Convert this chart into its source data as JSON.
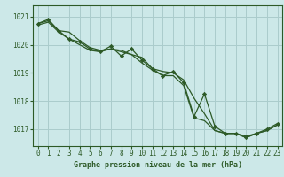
{
  "title": "Graphe pression niveau de la mer (hPa)",
  "bg_color": "#cce8e8",
  "grid_color": "#aacccc",
  "line_color": "#2d5a27",
  "ylim": [
    1016.4,
    1021.4
  ],
  "xlim": [
    -0.5,
    23.5
  ],
  "yticks": [
    1017,
    1018,
    1019,
    1020,
    1021
  ],
  "xticks": [
    0,
    1,
    2,
    3,
    4,
    5,
    6,
    7,
    8,
    9,
    10,
    11,
    12,
    13,
    14,
    15,
    16,
    17,
    18,
    19,
    20,
    21,
    22,
    23
  ],
  "line1_x": [
    0,
    1,
    2,
    3,
    4,
    5,
    6,
    7,
    8,
    9,
    10,
    11,
    12,
    13,
    14,
    15,
    16,
    17,
    18,
    19,
    20,
    21,
    22,
    23
  ],
  "line1_y": [
    1020.75,
    1020.85,
    1020.5,
    1020.45,
    1020.15,
    1019.9,
    1019.8,
    1019.85,
    1019.8,
    1019.65,
    1019.55,
    1019.15,
    1019.05,
    1019.0,
    1018.75,
    1018.1,
    1017.55,
    1016.95,
    1016.85,
    1016.85,
    1016.75,
    1016.85,
    1016.95,
    1017.15
  ],
  "line2_x": [
    0,
    1,
    2,
    3,
    4,
    5,
    6,
    7,
    8,
    9,
    10,
    11,
    12,
    13,
    14,
    15,
    16,
    17,
    18,
    19,
    20,
    21,
    22,
    23
  ],
  "line2_y": [
    1020.75,
    1020.9,
    1020.5,
    1020.2,
    1020.1,
    1019.85,
    1019.75,
    1019.95,
    1019.6,
    1019.85,
    1019.45,
    1019.15,
    1018.9,
    1019.05,
    1018.65,
    1017.45,
    1018.25,
    1017.1,
    1016.85,
    1016.85,
    1016.7,
    1016.85,
    1017.0,
    1017.2
  ],
  "line3_x": [
    0,
    1,
    2,
    3,
    4,
    5,
    6,
    7,
    8,
    9,
    10,
    11,
    12,
    13,
    14,
    15,
    16,
    17,
    18,
    19,
    20,
    21,
    22,
    23
  ],
  "line3_y": [
    1020.7,
    1020.8,
    1020.45,
    1020.2,
    1020.0,
    1019.8,
    1019.75,
    1019.85,
    1019.75,
    1019.65,
    1019.35,
    1019.1,
    1018.9,
    1018.9,
    1018.55,
    1017.4,
    1017.3,
    1016.95,
    1016.85,
    1016.85,
    1016.7,
    1016.85,
    1016.95,
    1017.15
  ]
}
